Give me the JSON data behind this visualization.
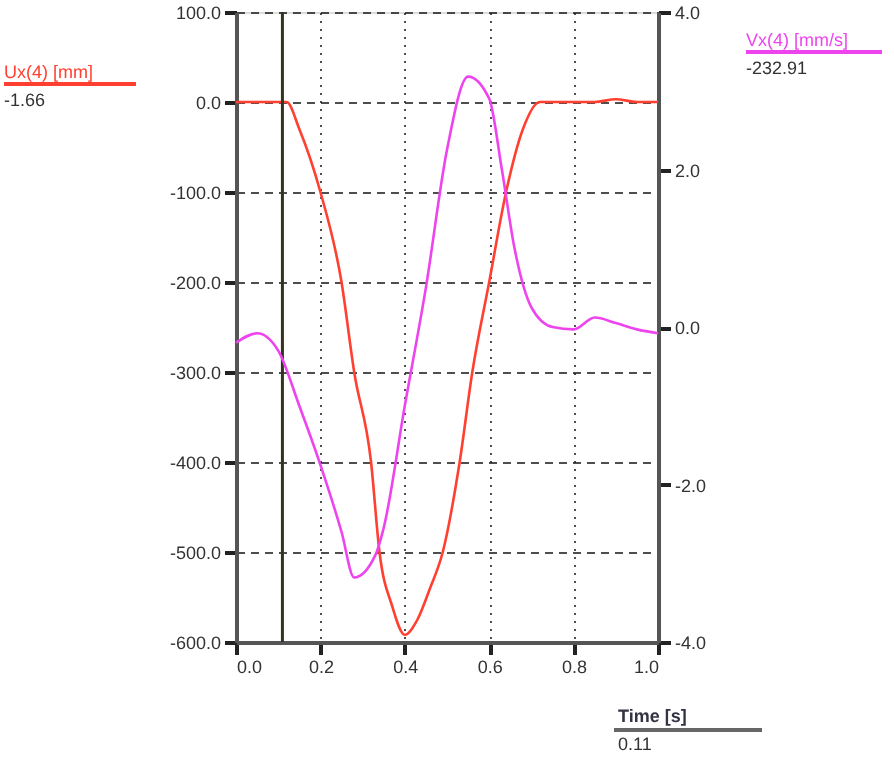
{
  "chart_data": {
    "type": "line",
    "xlabel": "Time [s]",
    "x": [
      0,
      0.05,
      0.1,
      0.12,
      0.15,
      0.2,
      0.25,
      0.28,
      0.32,
      0.34,
      0.37,
      0.4,
      0.43,
      0.46,
      0.49,
      0.53,
      0.56,
      0.6,
      0.64,
      0.68,
      0.72,
      0.8,
      0.85,
      0.9,
      0.95,
      1.0
    ],
    "series": [
      {
        "name": "Ux(4) [mm]",
        "color": "#ff4030",
        "axis": "y",
        "values": [
          0,
          0,
          0,
          0,
          -30,
          -100,
          -200,
          -300,
          -400,
          -500,
          -560,
          -592,
          -575,
          -540,
          -500,
          -400,
          -300,
          -200,
          -100,
          -30,
          0,
          0,
          0,
          3,
          0,
          0
        ]
      },
      {
        "name": "Vx(4) [mm/s]",
        "color": "#ee44ee",
        "axis": "y2",
        "x": [
          0,
          0.05,
          0.1,
          0.15,
          0.2,
          0.25,
          0.28,
          0.33,
          0.35,
          0.4,
          0.45,
          0.5,
          0.55,
          0.6,
          0.63,
          0.66,
          0.7,
          0.75,
          0.8,
          0.85,
          0.9,
          0.95,
          1.0
        ],
        "values": [
          -0.2,
          -0.08,
          -0.3,
          -1.0,
          -1.75,
          -2.6,
          -3.18,
          -2.9,
          -2.55,
          -1.0,
          0.5,
          2.25,
          3.18,
          2.9,
          2.0,
          1.0,
          0.25,
          0.0,
          -0.03,
          0.12,
          0.05,
          -0.03,
          -0.08
        ]
      }
    ],
    "xlim": [
      0,
      1.0
    ],
    "xticks": [
      {
        "value": 0,
        "label": "0.0"
      },
      0.2,
      0.4,
      0.6,
      0.8,
      {
        "value": 1,
        "label": "1.0"
      }
    ],
    "ylim": [
      -600,
      100
    ],
    "yticks": [
      {
        "value": 100,
        "label": "100.0"
      },
      {
        "value": 0,
        "label": "0.0"
      },
      {
        "value": -100,
        "label": "-100.0"
      },
      {
        "value": -200,
        "label": "-200.0"
      },
      {
        "value": -300,
        "label": "-300.0"
      },
      {
        "value": -400,
        "label": "-400.0"
      },
      {
        "value": -500,
        "label": "-500.0"
      },
      {
        "value": -600,
        "label": "-600.0"
      }
    ],
    "y2lim": [
      -4,
      4
    ],
    "y2ticks": [
      {
        "value": 4,
        "label": "4.0"
      },
      {
        "value": 2,
        "label": "2.0"
      },
      {
        "value": 0,
        "label": "0.0"
      },
      {
        "value": -2,
        "label": "-2.0"
      },
      {
        "value": -4,
        "label": "-4.0"
      }
    ],
    "ref_lines": [
      {
        "axis": "x",
        "value": 0.11,
        "color": "#333322"
      }
    ],
    "annotations": [
      "-1.66",
      "-232.91",
      "0.11"
    ],
    "grid": true,
    "line_style": "solid",
    "marker": "none"
  }
}
